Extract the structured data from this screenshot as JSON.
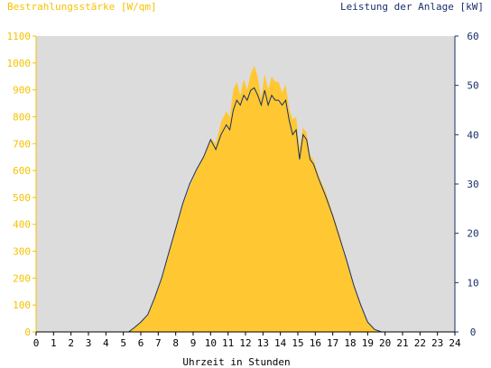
{
  "chart_data": {
    "type": "area",
    "ylabel": "Bestrahlungsstärke [W/qm]",
    "y2label": "Leistung der Anlage [kW]",
    "xlabel": "Uhrzeit in Stunden",
    "xlim": [
      0,
      24
    ],
    "ylim": [
      0,
      1100
    ],
    "y2lim": [
      0,
      60
    ],
    "x_ticks": [
      0,
      1,
      2,
      3,
      4,
      5,
      6,
      7,
      8,
      9,
      10,
      11,
      12,
      13,
      14,
      15,
      16,
      17,
      18,
      19,
      20,
      21,
      22,
      23,
      24
    ],
    "y_ticks": [
      0,
      100,
      200,
      300,
      400,
      500,
      600,
      700,
      800,
      900,
      1000,
      1100
    ],
    "y2_ticks": [
      0,
      10,
      20,
      30,
      40,
      50,
      60
    ],
    "grid": false,
    "colors": {
      "plot_background": "#dcdcdc",
      "irradiance_fill": "#ffc832",
      "power_line": "#1a2e6b",
      "left_axis": "#f5c200",
      "right_axis": "#1a2e6b"
    },
    "series": [
      {
        "axis": "left",
        "x": [
          5.3,
          5.6,
          6.0,
          6.4,
          6.8,
          7.2,
          7.6,
          8.0,
          8.4,
          8.8,
          9.2,
          9.6,
          10.0,
          10.3,
          10.6,
          10.9,
          11.1,
          11.3,
          11.5,
          11.7,
          11.9,
          12.1,
          12.3,
          12.5,
          12.7,
          12.9,
          13.1,
          13.3,
          13.5,
          13.7,
          13.9,
          14.1,
          14.3,
          14.5,
          14.7,
          14.9,
          15.1,
          15.3,
          15.5,
          15.7,
          15.9,
          16.2,
          16.6,
          17.0,
          17.4,
          17.8,
          18.2,
          18.6,
          19.0,
          19.4,
          19.8,
          20.1
        ],
        "y": [
          0,
          15,
          35,
          60,
          130,
          200,
          290,
          390,
          470,
          540,
          600,
          650,
          720,
          700,
          780,
          820,
          800,
          900,
          930,
          880,
          940,
          900,
          960,
          990,
          950,
          870,
          960,
          900,
          950,
          930,
          930,
          890,
          920,
          830,
          790,
          800,
          680,
          760,
          740,
          660,
          640,
          580,
          520,
          440,
          360,
          270,
          180,
          100,
          40,
          10,
          0,
          0
        ]
      },
      {
        "axis": "right",
        "x": [
          5.3,
          5.6,
          6.0,
          6.4,
          6.8,
          7.2,
          7.6,
          8.0,
          8.4,
          8.8,
          9.2,
          9.6,
          10.0,
          10.3,
          10.6,
          10.9,
          11.1,
          11.3,
          11.5,
          11.7,
          11.9,
          12.1,
          12.3,
          12.5,
          12.7,
          12.9,
          13.1,
          13.3,
          13.5,
          13.7,
          13.9,
          14.1,
          14.3,
          14.5,
          14.7,
          14.9,
          15.1,
          15.3,
          15.5,
          15.7,
          15.9,
          16.2,
          16.6,
          17.0,
          17.4,
          17.8,
          18.2,
          18.6,
          19.0,
          19.4,
          19.8,
          20.1
        ],
        "y": [
          0,
          0.8,
          2,
          3.5,
          7,
          11,
          16,
          21,
          26,
          30,
          33,
          35.5,
          39,
          37,
          40,
          42,
          41,
          45,
          47,
          46,
          48,
          47,
          49,
          49.5,
          48,
          46,
          49,
          46,
          48,
          47,
          47,
          46,
          47,
          43,
          40,
          41,
          35,
          40,
          39,
          35,
          34,
          31,
          27.5,
          23.5,
          19,
          14.5,
          9.5,
          5.5,
          2,
          0.5,
          0,
          0
        ]
      }
    ]
  }
}
